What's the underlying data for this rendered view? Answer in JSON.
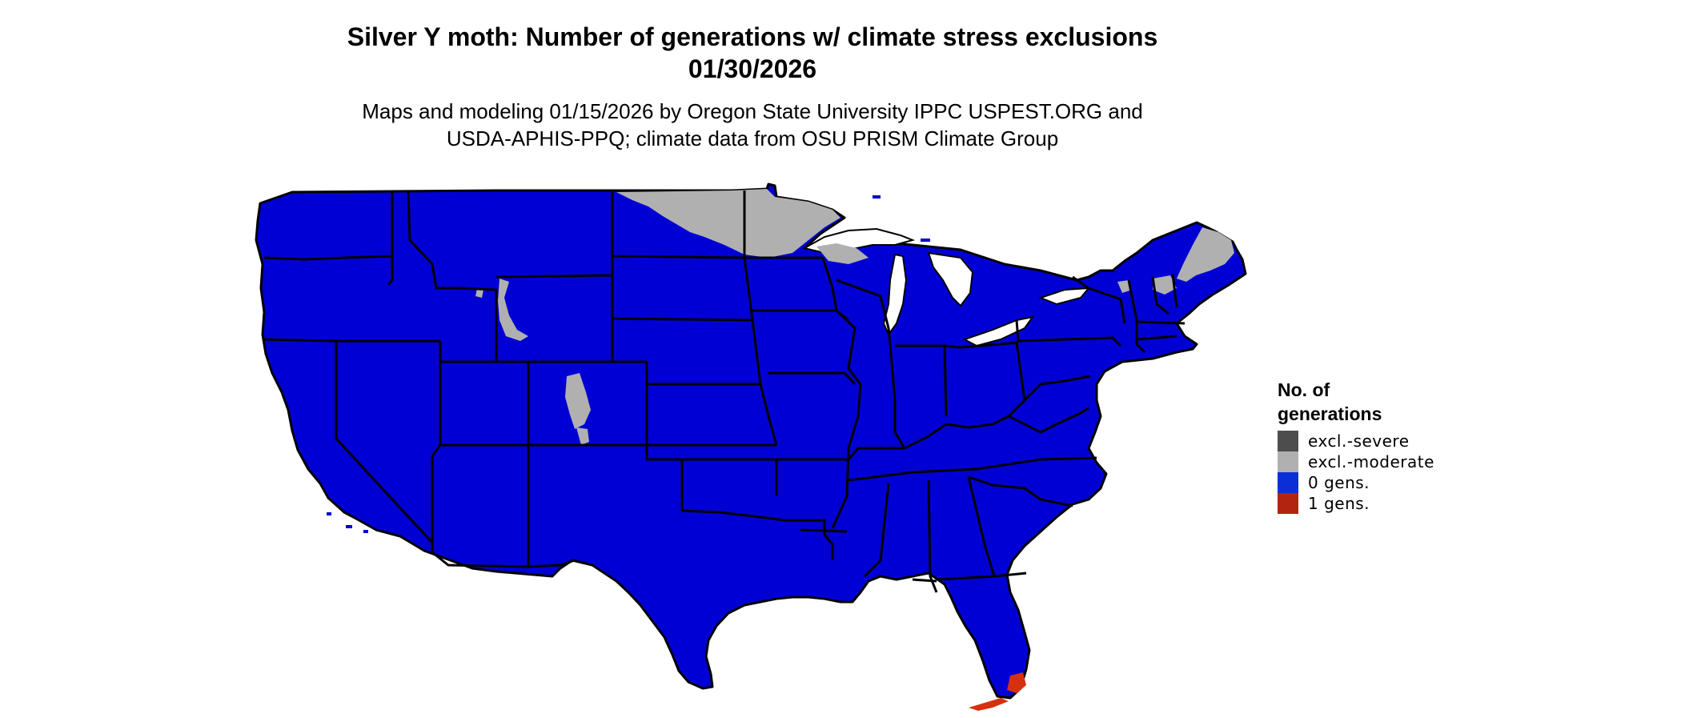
{
  "header": {
    "title_line1": "Silver Y moth: Number of generations w/ climate stress exclusions",
    "title_line2": "01/30/2026",
    "subtitle_line1": "Maps and modeling 01/15/2026 by Oregon State University IPPC USPEST.ORG and",
    "subtitle_line2": "USDA-APHIS-PPQ; climate data from OSU PRISM Climate Group"
  },
  "legend": {
    "title_line1": "No. of",
    "title_line2": "generations",
    "items": [
      {
        "label": "excl.-severe",
        "color": "#4d4d4d"
      },
      {
        "label": "excl.-moderate",
        "color": "#b0b0b0"
      },
      {
        "label": "0 gens.",
        "color": "#0b2fd6"
      },
      {
        "label": "1 gens.",
        "color": "#b22410"
      }
    ]
  },
  "map": {
    "region": "Contiguous United States",
    "fill_zero_gens": "#0000d4",
    "fill_moderate": "#b0b0b0",
    "fill_one_gen": "#d63010",
    "border_color": "#000000"
  }
}
